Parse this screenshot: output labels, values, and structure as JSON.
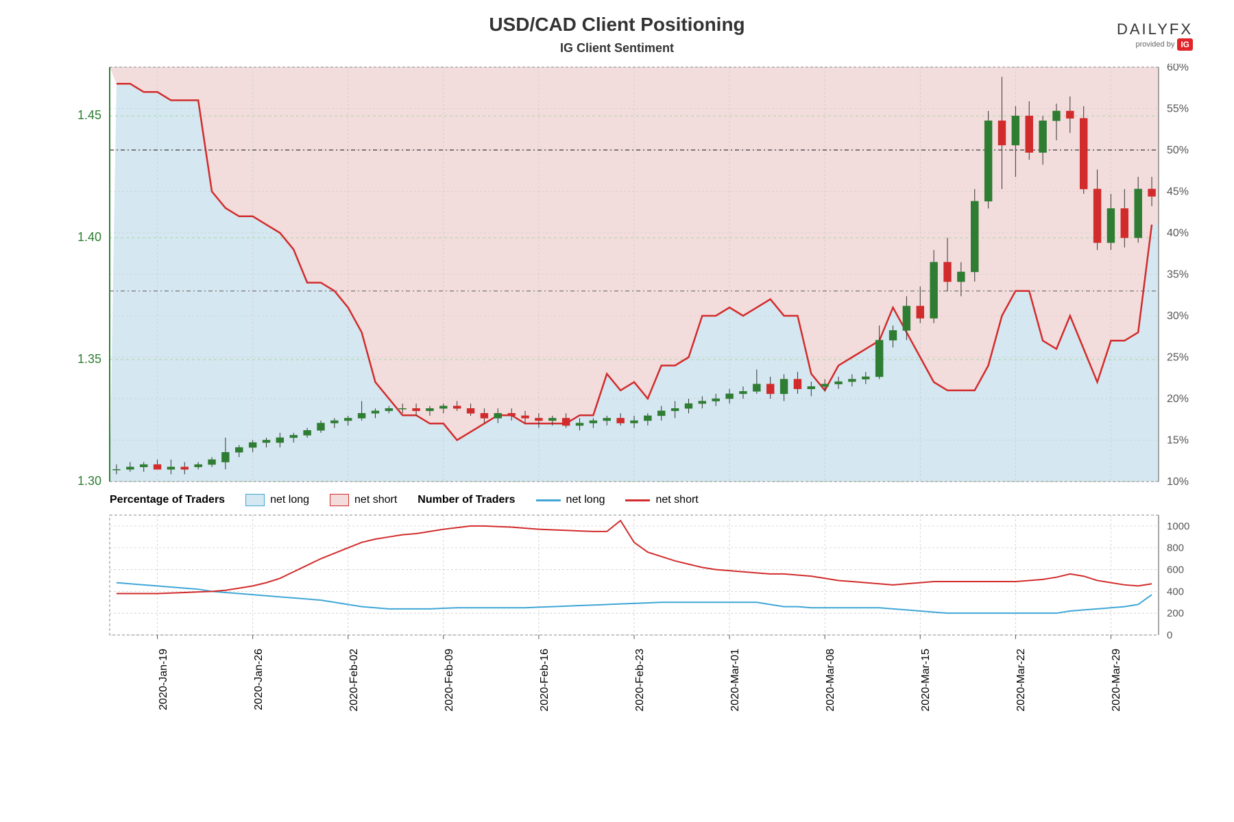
{
  "title": "USD/CAD Client Positioning",
  "subtitle": "IG Client Sentiment",
  "logo": {
    "main": "DAILYFX",
    "sub": "provided by",
    "badge": "IG"
  },
  "mainChart": {
    "plotLeft": 120,
    "plotRight": 1650,
    "plotTop": 0,
    "plotBottom": 610,
    "leftAxis": {
      "min": 1.3,
      "max": 1.47,
      "ticks": [
        1.3,
        1.35,
        1.4,
        1.45
      ],
      "color": "#2e7d32",
      "gridColor": "#a5d6a7"
    },
    "rightAxis": {
      "min": 10,
      "max": 60,
      "ticks": [
        10,
        15,
        20,
        25,
        30,
        35,
        40,
        45,
        50,
        55,
        60
      ],
      "suffix": "%",
      "color": "#555",
      "gridColor": "#bbb"
    },
    "refLines": [
      {
        "value": 50,
        "axis": "right",
        "color": "#555",
        "dash": "6,4,2,4"
      },
      {
        "value": 33,
        "axis": "right",
        "color": "#888",
        "dash": "6,4,2,4"
      }
    ],
    "background": {
      "netLongFill": "#d5e7f0",
      "netShortFill": "#f3dcdc"
    },
    "sentimentShort": [
      58,
      58,
      57,
      57,
      56,
      56,
      56,
      45,
      43,
      42,
      42,
      41,
      40,
      38,
      34,
      34,
      33,
      31,
      28,
      22,
      20,
      18,
      18,
      17,
      17,
      15,
      16,
      17,
      18,
      18,
      17,
      17,
      17,
      17,
      18,
      18,
      23,
      21,
      22,
      20,
      24,
      24,
      25,
      30,
      30,
      31,
      30,
      31,
      32,
      30,
      30,
      23,
      21,
      24,
      25,
      26,
      27,
      31,
      28,
      25,
      22,
      21,
      21,
      21,
      24,
      30,
      33,
      33,
      27,
      26,
      30,
      26,
      22,
      27,
      27,
      28,
      41
    ],
    "sentimentColor": "#d22b2b",
    "candles": [
      {
        "i": 0,
        "o": 1.305,
        "h": 1.307,
        "l": 1.303,
        "c": 1.305
      },
      {
        "i": 1,
        "o": 1.305,
        "h": 1.308,
        "l": 1.304,
        "c": 1.306
      },
      {
        "i": 2,
        "o": 1.306,
        "h": 1.308,
        "l": 1.304,
        "c": 1.307
      },
      {
        "i": 3,
        "o": 1.307,
        "h": 1.309,
        "l": 1.305,
        "c": 1.305
      },
      {
        "i": 4,
        "o": 1.305,
        "h": 1.309,
        "l": 1.303,
        "c": 1.306
      },
      {
        "i": 5,
        "o": 1.306,
        "h": 1.308,
        "l": 1.303,
        "c": 1.305
      },
      {
        "i": 6,
        "o": 1.306,
        "h": 1.308,
        "l": 1.305,
        "c": 1.307
      },
      {
        "i": 7,
        "o": 1.307,
        "h": 1.31,
        "l": 1.306,
        "c": 1.309
      },
      {
        "i": 8,
        "o": 1.308,
        "h": 1.318,
        "l": 1.305,
        "c": 1.312
      },
      {
        "i": 9,
        "o": 1.312,
        "h": 1.315,
        "l": 1.31,
        "c": 1.314
      },
      {
        "i": 10,
        "o": 1.314,
        "h": 1.317,
        "l": 1.312,
        "c": 1.316
      },
      {
        "i": 11,
        "o": 1.316,
        "h": 1.318,
        "l": 1.314,
        "c": 1.317
      },
      {
        "i": 12,
        "o": 1.316,
        "h": 1.32,
        "l": 1.314,
        "c": 1.318
      },
      {
        "i": 13,
        "o": 1.318,
        "h": 1.32,
        "l": 1.316,
        "c": 1.319
      },
      {
        "i": 14,
        "o": 1.319,
        "h": 1.322,
        "l": 1.318,
        "c": 1.321
      },
      {
        "i": 15,
        "o": 1.321,
        "h": 1.325,
        "l": 1.32,
        "c": 1.324
      },
      {
        "i": 16,
        "o": 1.324,
        "h": 1.326,
        "l": 1.322,
        "c": 1.325
      },
      {
        "i": 17,
        "o": 1.325,
        "h": 1.327,
        "l": 1.323,
        "c": 1.326
      },
      {
        "i": 18,
        "o": 1.326,
        "h": 1.333,
        "l": 1.325,
        "c": 1.328
      },
      {
        "i": 19,
        "o": 1.328,
        "h": 1.33,
        "l": 1.326,
        "c": 1.329
      },
      {
        "i": 20,
        "o": 1.329,
        "h": 1.331,
        "l": 1.328,
        "c": 1.33
      },
      {
        "i": 21,
        "o": 1.33,
        "h": 1.332,
        "l": 1.328,
        "c": 1.33
      },
      {
        "i": 22,
        "o": 1.33,
        "h": 1.332,
        "l": 1.327,
        "c": 1.329
      },
      {
        "i": 23,
        "o": 1.329,
        "h": 1.331,
        "l": 1.327,
        "c": 1.33
      },
      {
        "i": 24,
        "o": 1.33,
        "h": 1.332,
        "l": 1.328,
        "c": 1.331
      },
      {
        "i": 25,
        "o": 1.331,
        "h": 1.333,
        "l": 1.329,
        "c": 1.33
      },
      {
        "i": 26,
        "o": 1.33,
        "h": 1.332,
        "l": 1.327,
        "c": 1.328
      },
      {
        "i": 27,
        "o": 1.328,
        "h": 1.33,
        "l": 1.324,
        "c": 1.326
      },
      {
        "i": 28,
        "o": 1.326,
        "h": 1.33,
        "l": 1.324,
        "c": 1.328
      },
      {
        "i": 29,
        "o": 1.328,
        "h": 1.33,
        "l": 1.325,
        "c": 1.327
      },
      {
        "i": 30,
        "o": 1.327,
        "h": 1.329,
        "l": 1.324,
        "c": 1.326
      },
      {
        "i": 31,
        "o": 1.326,
        "h": 1.328,
        "l": 1.322,
        "c": 1.325
      },
      {
        "i": 32,
        "o": 1.325,
        "h": 1.327,
        "l": 1.323,
        "c": 1.326
      },
      {
        "i": 33,
        "o": 1.326,
        "h": 1.328,
        "l": 1.322,
        "c": 1.323
      },
      {
        "i": 34,
        "o": 1.323,
        "h": 1.326,
        "l": 1.321,
        "c": 1.324
      },
      {
        "i": 35,
        "o": 1.324,
        "h": 1.326,
        "l": 1.322,
        "c": 1.325
      },
      {
        "i": 36,
        "o": 1.325,
        "h": 1.327,
        "l": 1.323,
        "c": 1.326
      },
      {
        "i": 37,
        "o": 1.326,
        "h": 1.328,
        "l": 1.323,
        "c": 1.324
      },
      {
        "i": 38,
        "o": 1.324,
        "h": 1.327,
        "l": 1.322,
        "c": 1.325
      },
      {
        "i": 39,
        "o": 1.325,
        "h": 1.328,
        "l": 1.323,
        "c": 1.327
      },
      {
        "i": 40,
        "o": 1.327,
        "h": 1.331,
        "l": 1.325,
        "c": 1.329
      },
      {
        "i": 41,
        "o": 1.329,
        "h": 1.333,
        "l": 1.326,
        "c": 1.33
      },
      {
        "i": 42,
        "o": 1.33,
        "h": 1.334,
        "l": 1.328,
        "c": 1.332
      },
      {
        "i": 43,
        "o": 1.332,
        "h": 1.335,
        "l": 1.33,
        "c": 1.333
      },
      {
        "i": 44,
        "o": 1.333,
        "h": 1.336,
        "l": 1.331,
        "c": 1.334
      },
      {
        "i": 45,
        "o": 1.334,
        "h": 1.338,
        "l": 1.332,
        "c": 1.336
      },
      {
        "i": 46,
        "o": 1.336,
        "h": 1.339,
        "l": 1.334,
        "c": 1.337
      },
      {
        "i": 47,
        "o": 1.337,
        "h": 1.346,
        "l": 1.336,
        "c": 1.34
      },
      {
        "i": 48,
        "o": 1.34,
        "h": 1.343,
        "l": 1.334,
        "c": 1.336
      },
      {
        "i": 49,
        "o": 1.336,
        "h": 1.344,
        "l": 1.333,
        "c": 1.342
      },
      {
        "i": 50,
        "o": 1.342,
        "h": 1.345,
        "l": 1.336,
        "c": 1.338
      },
      {
        "i": 51,
        "o": 1.338,
        "h": 1.341,
        "l": 1.335,
        "c": 1.339
      },
      {
        "i": 52,
        "o": 1.339,
        "h": 1.342,
        "l": 1.337,
        "c": 1.34
      },
      {
        "i": 53,
        "o": 1.34,
        "h": 1.343,
        "l": 1.338,
        "c": 1.341
      },
      {
        "i": 54,
        "o": 1.341,
        "h": 1.344,
        "l": 1.339,
        "c": 1.342
      },
      {
        "i": 55,
        "o": 1.342,
        "h": 1.345,
        "l": 1.34,
        "c": 1.343
      },
      {
        "i": 56,
        "o": 1.343,
        "h": 1.364,
        "l": 1.342,
        "c": 1.358
      },
      {
        "i": 57,
        "o": 1.358,
        "h": 1.364,
        "l": 1.355,
        "c": 1.362
      },
      {
        "i": 58,
        "o": 1.362,
        "h": 1.376,
        "l": 1.358,
        "c": 1.372
      },
      {
        "i": 59,
        "o": 1.372,
        "h": 1.38,
        "l": 1.365,
        "c": 1.367
      },
      {
        "i": 60,
        "o": 1.367,
        "h": 1.395,
        "l": 1.365,
        "c": 1.39
      },
      {
        "i": 61,
        "o": 1.39,
        "h": 1.4,
        "l": 1.378,
        "c": 1.382
      },
      {
        "i": 62,
        "o": 1.382,
        "h": 1.39,
        "l": 1.376,
        "c": 1.386
      },
      {
        "i": 63,
        "o": 1.386,
        "h": 1.42,
        "l": 1.382,
        "c": 1.415
      },
      {
        "i": 64,
        "o": 1.415,
        "h": 1.452,
        "l": 1.412,
        "c": 1.448
      },
      {
        "i": 65,
        "o": 1.448,
        "h": 1.466,
        "l": 1.42,
        "c": 1.438
      },
      {
        "i": 66,
        "o": 1.438,
        "h": 1.454,
        "l": 1.425,
        "c": 1.45
      },
      {
        "i": 67,
        "o": 1.45,
        "h": 1.456,
        "l": 1.432,
        "c": 1.435
      },
      {
        "i": 68,
        "o": 1.435,
        "h": 1.45,
        "l": 1.43,
        "c": 1.448
      },
      {
        "i": 69,
        "o": 1.448,
        "h": 1.455,
        "l": 1.44,
        "c": 1.452
      },
      {
        "i": 70,
        "o": 1.452,
        "h": 1.458,
        "l": 1.443,
        "c": 1.449
      },
      {
        "i": 71,
        "o": 1.449,
        "h": 1.454,
        "l": 1.418,
        "c": 1.42
      },
      {
        "i": 72,
        "o": 1.42,
        "h": 1.428,
        "l": 1.395,
        "c": 1.398
      },
      {
        "i": 73,
        "o": 1.398,
        "h": 1.418,
        "l": 1.395,
        "c": 1.412
      },
      {
        "i": 74,
        "o": 1.412,
        "h": 1.42,
        "l": 1.396,
        "c": 1.4
      },
      {
        "i": 75,
        "o": 1.4,
        "h": 1.425,
        "l": 1.398,
        "c": 1.42
      },
      {
        "i": 76,
        "o": 1.42,
        "h": 1.425,
        "l": 1.413,
        "c": 1.417
      }
    ],
    "candleUpColor": "#2e7d32",
    "candleDownColor": "#d22b2b",
    "candleWickColor": "#333"
  },
  "legend": {
    "pctLabel": "Percentage of Traders",
    "numLabel": "Number of Traders",
    "items": [
      {
        "type": "box",
        "label": "net long",
        "fill": "#d5e7f0",
        "border": "#3fa6d6"
      },
      {
        "type": "box",
        "label": "net short",
        "fill": "#f3dcdc",
        "border": "#d22b2b"
      },
      {
        "type": "line",
        "label": "net long",
        "color": "#3fa6d6"
      },
      {
        "type": "line",
        "label": "net short",
        "color": "#d22b2b"
      }
    ]
  },
  "lowerChart": {
    "plotLeft": 120,
    "plotRight": 1650,
    "plotTop": 0,
    "plotBottom": 180,
    "rightAxis": {
      "min": 0,
      "max": 1100,
      "ticks": [
        0,
        200,
        400,
        600,
        800,
        1000
      ],
      "color": "#555",
      "gridColor": "#ccc"
    },
    "series": {
      "netLong": {
        "color": "#3fa6d6",
        "data": [
          480,
          470,
          460,
          450,
          440,
          430,
          420,
          400,
          390,
          380,
          370,
          360,
          350,
          340,
          330,
          320,
          300,
          280,
          260,
          250,
          240,
          240,
          240,
          240,
          245,
          250,
          250,
          250,
          250,
          250,
          250,
          255,
          260,
          265,
          270,
          275,
          280,
          285,
          290,
          295,
          300,
          300,
          300,
          300,
          300,
          300,
          300,
          300,
          280,
          260,
          260,
          250,
          250,
          250,
          250,
          250,
          250,
          240,
          230,
          220,
          210,
          200,
          200,
          200,
          200,
          200,
          200,
          200,
          200,
          200,
          220,
          230,
          240,
          250,
          260,
          280,
          370
        ]
      },
      "netShort": {
        "color": "#d22b2b",
        "data": [
          380,
          380,
          380,
          380,
          385,
          390,
          395,
          400,
          410,
          430,
          450,
          480,
          520,
          580,
          640,
          700,
          750,
          800,
          850,
          880,
          900,
          920,
          930,
          950,
          970,
          985,
          1000,
          1000,
          995,
          990,
          980,
          970,
          965,
          960,
          955,
          950,
          950,
          1050,
          850,
          760,
          720,
          680,
          650,
          620,
          600,
          590,
          580,
          570,
          560,
          560,
          550,
          540,
          520,
          500,
          490,
          480,
          470,
          460,
          470,
          480,
          490,
          490,
          490,
          490,
          490,
          490,
          490,
          500,
          510,
          530,
          560,
          540,
          500,
          480,
          460,
          450,
          470
        ]
      }
    }
  },
  "xAxis": {
    "count": 77,
    "majorTicks": [
      {
        "i": 3,
        "label": "2020-Jan-19"
      },
      {
        "i": 10,
        "label": "2020-Jan-26"
      },
      {
        "i": 17,
        "label": "2020-Feb-02"
      },
      {
        "i": 24,
        "label": "2020-Feb-09"
      },
      {
        "i": 31,
        "label": "2020-Feb-16"
      },
      {
        "i": 38,
        "label": "2020-Feb-23"
      },
      {
        "i": 45,
        "label": "2020-Mar-01"
      },
      {
        "i": 52,
        "label": "2020-Mar-08"
      },
      {
        "i": 59,
        "label": "2020-Mar-15"
      },
      {
        "i": 66,
        "label": "2020-Mar-22"
      },
      {
        "i": 73,
        "label": "2020-Mar-29"
      }
    ]
  }
}
